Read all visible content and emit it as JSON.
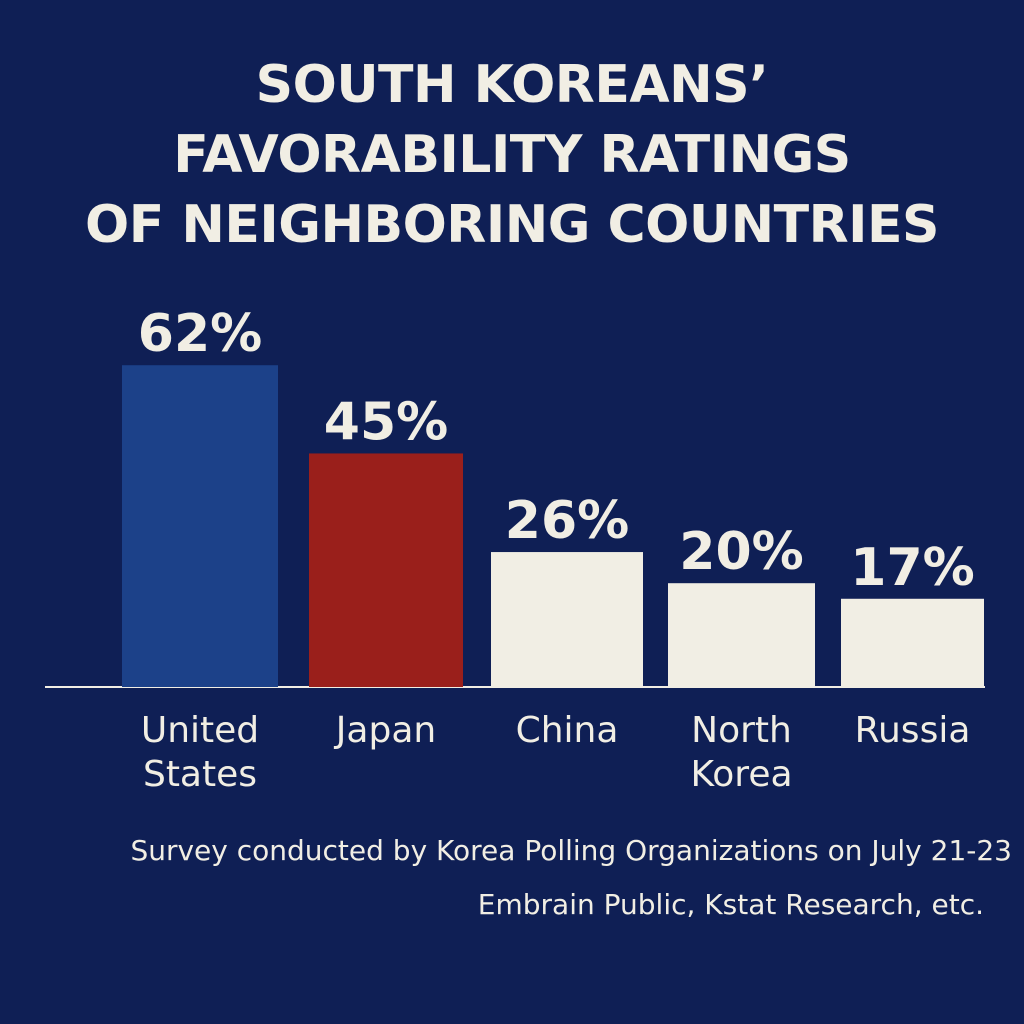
{
  "title_lines": [
    "SOUTH KOREANS’",
    "FAVORABILITY RATINGS",
    "OF NEIGHBORING COUNTRIES"
  ],
  "chart_data": {
    "type": "bar",
    "title": "SOUTH KOREANS’ FAVORABILITY RATINGS OF NEIGHBORING COUNTRIES",
    "categories": [
      "United States",
      "Japan",
      "China",
      "North Korea",
      "Russia"
    ],
    "category_label_lines": [
      [
        "United",
        "States"
      ],
      [
        "Japan"
      ],
      [
        "China"
      ],
      [
        "North",
        "Korea"
      ],
      [
        "Russia"
      ]
    ],
    "values": [
      62,
      45,
      26,
      20,
      17
    ],
    "value_labels": [
      "62%",
      "45%",
      "26%",
      "20%",
      "17%"
    ],
    "bar_colors": [
      "#1c4189",
      "#9a1f1b",
      "#f1eee4",
      "#f1eee4",
      "#f1eee4"
    ],
    "unit": "%",
    "ylim": [
      0,
      100
    ],
    "grid": false,
    "legend": "none",
    "xlabel": "",
    "ylabel": ""
  },
  "source": {
    "line1": "Survey conducted by Korea Polling Organizations on July 21-23",
    "line2": "Embrain Public, Kstat Research, etc."
  },
  "colors": {
    "background": "#0f1f55",
    "text": "#f1eee4",
    "axis": "#f1eee4"
  }
}
